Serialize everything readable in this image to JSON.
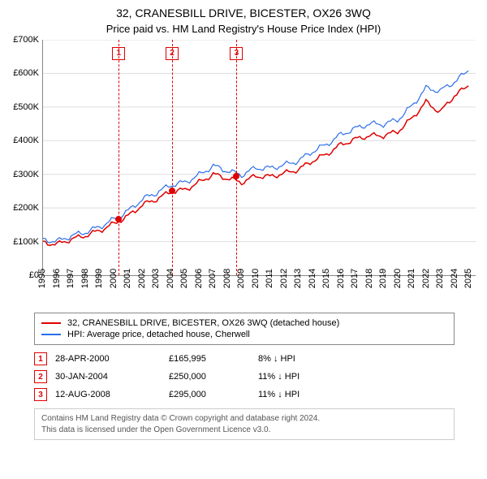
{
  "title": "32, CRANESBILL DRIVE, BICESTER, OX26 3WQ",
  "subtitle": "Price paid vs. HM Land Registry's House Price Index (HPI)",
  "chart": {
    "type": "line",
    "background_color": "#ffffff",
    "grid_color": "#dddddd",
    "axis_color": "#888888",
    "ylim": [
      0,
      700000
    ],
    "ytick_step": 100000,
    "ytick_labels": [
      "£0",
      "£100K",
      "£200K",
      "£300K",
      "£400K",
      "£500K",
      "£600K",
      "£700K"
    ],
    "xlim": [
      1995,
      2025.5
    ],
    "xticks": [
      1995,
      1996,
      1997,
      1998,
      1999,
      2000,
      2001,
      2002,
      2003,
      2004,
      2005,
      2006,
      2007,
      2008,
      2009,
      2010,
      2011,
      2012,
      2013,
      2014,
      2015,
      2016,
      2017,
      2018,
      2019,
      2020,
      2021,
      2022,
      2023,
      2024,
      2025
    ],
    "series": [
      {
        "name": "hpi",
        "color": "#2b6eea",
        "width": 1.2,
        "points": [
          [
            1995,
            105000
          ],
          [
            1996,
            101000
          ],
          [
            1997,
            117000
          ],
          [
            1998,
            128000
          ],
          [
            1999,
            144000
          ],
          [
            2000,
            166000
          ],
          [
            2001,
            191000
          ],
          [
            2002,
            226000
          ],
          [
            2003,
            245000
          ],
          [
            2004,
            268000
          ],
          [
            2005,
            276000
          ],
          [
            2006,
            298000
          ],
          [
            2007,
            325000
          ],
          [
            2008,
            310000
          ],
          [
            2009,
            298000
          ],
          [
            2010,
            319000
          ],
          [
            2011,
            318000
          ],
          [
            2012,
            328000
          ],
          [
            2013,
            340000
          ],
          [
            2014,
            368000
          ],
          [
            2015,
            389000
          ],
          [
            2016,
            418000
          ],
          [
            2017,
            436000
          ],
          [
            2018,
            450000
          ],
          [
            2019,
            449000
          ],
          [
            2020,
            462000
          ],
          [
            2021,
            503000
          ],
          [
            2022,
            556000
          ],
          [
            2023,
            548000
          ],
          [
            2024,
            575000
          ],
          [
            2025,
            608000
          ]
        ]
      },
      {
        "name": "property",
        "color": "#e00000",
        "width": 1.5,
        "points": [
          [
            1995,
            97000
          ],
          [
            1996,
            92000
          ],
          [
            1997,
            107000
          ],
          [
            1998,
            118000
          ],
          [
            1999,
            133000
          ],
          [
            2000,
            153000
          ],
          [
            2001,
            176000
          ],
          [
            2002,
            209000
          ],
          [
            2003,
            226000
          ],
          [
            2004,
            248000
          ],
          [
            2005,
            254000
          ],
          [
            2006,
            276000
          ],
          [
            2007,
            300000
          ],
          [
            2008,
            288000
          ],
          [
            2009,
            276000
          ],
          [
            2010,
            295000
          ],
          [
            2011,
            293000
          ],
          [
            2012,
            303000
          ],
          [
            2013,
            314000
          ],
          [
            2014,
            340000
          ],
          [
            2015,
            360000
          ],
          [
            2016,
            388000
          ],
          [
            2017,
            404000
          ],
          [
            2018,
            415000
          ],
          [
            2019,
            415000
          ],
          [
            2020,
            427000
          ],
          [
            2021,
            466000
          ],
          [
            2022,
            515000
          ],
          [
            2023,
            485000
          ],
          [
            2024,
            534000
          ],
          [
            2025,
            563000
          ]
        ]
      }
    ],
    "markers": [
      {
        "n": "1",
        "x": 2000.33,
        "y": 165995
      },
      {
        "n": "2",
        "x": 2004.08,
        "y": 250000
      },
      {
        "n": "3",
        "x": 2008.62,
        "y": 295000
      }
    ],
    "marker_box_border": "#e00000",
    "marker_box_text": "#e00000",
    "dot_color": "#e00000"
  },
  "legend": {
    "items": [
      {
        "color": "#e00000",
        "label": "32, CRANESBILL DRIVE, BICESTER, OX26 3WQ (detached house)"
      },
      {
        "color": "#2b6eea",
        "label": "HPI: Average price, detached house, Cherwell"
      }
    ]
  },
  "sales": [
    {
      "n": "1",
      "date": "28-APR-2000",
      "price": "£165,995",
      "hpi": "8% ↓ HPI"
    },
    {
      "n": "2",
      "date": "30-JAN-2004",
      "price": "£250,000",
      "hpi": "11% ↓ HPI"
    },
    {
      "n": "3",
      "date": "12-AUG-2008",
      "price": "£295,000",
      "hpi": "11% ↓ HPI"
    }
  ],
  "footnote_line1": "Contains HM Land Registry data © Crown copyright and database right 2024.",
  "footnote_line2": "This data is licensed under the Open Government Licence v3.0."
}
